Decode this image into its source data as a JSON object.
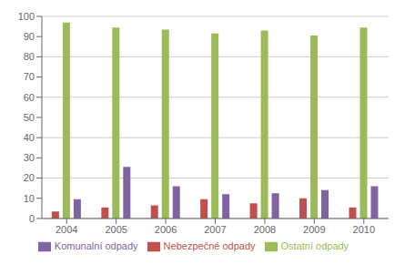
{
  "chart_data": {
    "type": "bar",
    "categories": [
      "2004",
      "2005",
      "2006",
      "2007",
      "2008",
      "2009",
      "2010"
    ],
    "series": [
      {
        "name": "Nebezpečné odpady",
        "color": "#C0504D",
        "values": [
          3.5,
          5.5,
          6.5,
          9.5,
          7.5,
          10.0,
          5.5
        ]
      },
      {
        "name": "Ostatní odpady",
        "color": "#9BBB59",
        "values": [
          97.0,
          94.5,
          93.5,
          91.5,
          93.0,
          90.5,
          94.5
        ]
      },
      {
        "name": "Komunalní odpady",
        "color": "#8064A2",
        "values": [
          9.5,
          25.5,
          16.0,
          12.0,
          12.5,
          14.0,
          16.0
        ]
      }
    ],
    "ylim": [
      0,
      100
    ],
    "yticks": [
      0,
      10,
      20,
      30,
      40,
      50,
      60,
      70,
      80,
      90,
      100
    ],
    "grid": true,
    "legend": "bottom"
  }
}
